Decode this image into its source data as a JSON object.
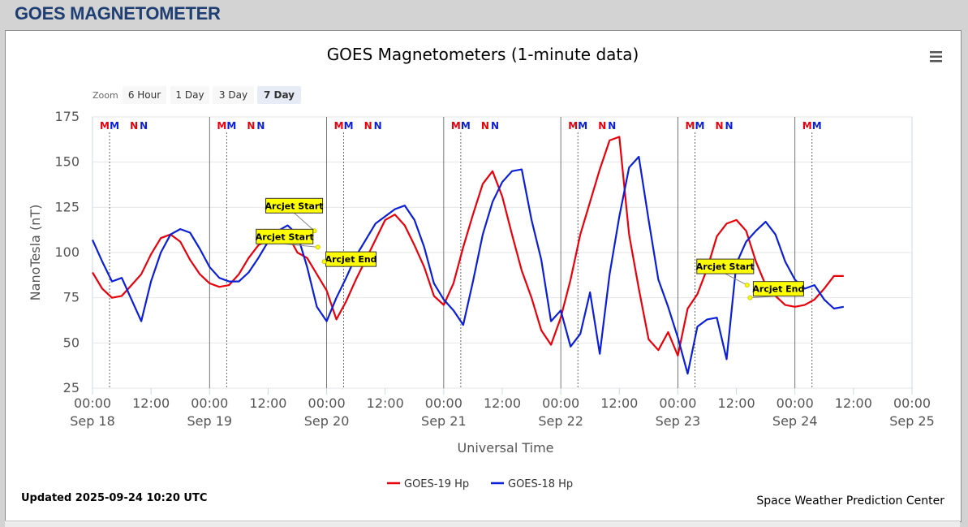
{
  "header": {
    "title": "GOES MAGNETOMETER"
  },
  "chart_data": {
    "type": "line",
    "title": "GOES Magnetometers (1-minute data)",
    "xlabel": "Universal Time",
    "ylabel": "NanoTesla (nT)",
    "ylim": [
      25,
      175
    ],
    "yticks": [
      25,
      50,
      75,
      100,
      125,
      150,
      175
    ],
    "xlim": [
      0,
      168
    ],
    "xticks": [
      {
        "hour": 0,
        "time": "00:00",
        "date": "Sep 18"
      },
      {
        "hour": 12,
        "time": "12:00",
        "date": ""
      },
      {
        "hour": 24,
        "time": "00:00",
        "date": "Sep 19"
      },
      {
        "hour": 36,
        "time": "12:00",
        "date": ""
      },
      {
        "hour": 48,
        "time": "00:00",
        "date": "Sep 20"
      },
      {
        "hour": 60,
        "time": "12:00",
        "date": ""
      },
      {
        "hour": 72,
        "time": "00:00",
        "date": "Sep 21"
      },
      {
        "hour": 84,
        "time": "12:00",
        "date": ""
      },
      {
        "hour": 96,
        "time": "00:00",
        "date": "Sep 22"
      },
      {
        "hour": 108,
        "time": "12:00",
        "date": ""
      },
      {
        "hour": 120,
        "time": "00:00",
        "date": "Sep 23"
      },
      {
        "hour": 132,
        "time": "12:00",
        "date": ""
      },
      {
        "hour": 144,
        "time": "00:00",
        "date": "Sep 24"
      },
      {
        "hour": 156,
        "time": "12:00",
        "date": ""
      },
      {
        "hour": 168,
        "time": "00:00",
        "date": "Sep 25"
      }
    ],
    "grid": true,
    "legend_position": "bottom-center",
    "series": [
      {
        "name": "GOES-19 Hp",
        "color": "#e8000b",
        "x": [
          0,
          2,
          4,
          6,
          8,
          10,
          12,
          14,
          16,
          18,
          20,
          22,
          24,
          26,
          28,
          30,
          32,
          34,
          36,
          38,
          40,
          42,
          44,
          46,
          48,
          50,
          52,
          54,
          56,
          58,
          60,
          62,
          64,
          66,
          68,
          70,
          72,
          74,
          76,
          78,
          80,
          82,
          84,
          86,
          88,
          90,
          92,
          94,
          96,
          98,
          100,
          102,
          104,
          106,
          108,
          110,
          112,
          114,
          116,
          118,
          120,
          122,
          124,
          126,
          128,
          130,
          132,
          134,
          136,
          138,
          140,
          142,
          144,
          146,
          148,
          150,
          152,
          154
        ],
        "y": [
          89,
          80,
          75,
          76,
          82,
          88,
          99,
          108,
          110,
          106,
          96,
          88,
          83,
          81,
          82,
          88,
          97,
          104,
          107,
          112,
          110,
          100,
          97,
          88,
          79,
          63,
          73,
          85,
          96,
          107,
          118,
          121,
          115,
          104,
          92,
          76,
          71,
          83,
          103,
          121,
          138,
          145,
          131,
          110,
          90,
          75,
          57,
          49,
          64,
          85,
          110,
          128,
          146,
          162,
          164,
          110,
          80,
          52,
          46,
          56,
          43,
          69,
          77,
          91,
          109,
          116,
          118,
          112,
          95,
          82,
          76,
          71,
          70,
          71,
          74,
          80,
          87,
          87
        ]
      },
      {
        "name": "GOES-18 Hp",
        "color": "#0b1fd8",
        "x": [
          0,
          2,
          4,
          6,
          8,
          10,
          12,
          14,
          16,
          18,
          20,
          22,
          24,
          26,
          28,
          30,
          32,
          34,
          36,
          38,
          40,
          42,
          44,
          46,
          48,
          50,
          52,
          54,
          56,
          58,
          60,
          62,
          64,
          66,
          68,
          70,
          72,
          74,
          76,
          78,
          80,
          82,
          84,
          86,
          88,
          90,
          92,
          94,
          96,
          98,
          100,
          102,
          104,
          106,
          108,
          110,
          112,
          114,
          116,
          118,
          120,
          122,
          124,
          126,
          128,
          130,
          132,
          134,
          136,
          138,
          140,
          142,
          144,
          146,
          148,
          150,
          152,
          154
        ],
        "y": [
          107,
          95,
          84,
          86,
          74,
          62,
          84,
          100,
          110,
          113,
          111,
          102,
          92,
          86,
          84,
          84,
          89,
          97,
          106,
          112,
          115,
          110,
          92,
          70,
          62,
          75,
          86,
          98,
          107,
          116,
          120,
          124,
          126,
          118,
          103,
          83,
          74,
          68,
          60,
          84,
          110,
          128,
          139,
          145,
          146,
          118,
          96,
          62,
          68,
          48,
          55,
          78,
          44,
          88,
          120,
          147,
          153,
          118,
          85,
          70,
          53,
          33,
          59,
          63,
          64,
          41,
          94,
          106,
          112,
          117,
          110,
          95,
          85,
          80,
          82,
          74,
          69,
          70
        ]
      }
    ],
    "annotations": [
      {
        "label": "Arcjet Start",
        "hour": 45.5,
        "value": 112
      },
      {
        "label": "Arcjet Start",
        "hour": 46.2,
        "value": 103
      },
      {
        "label": "Arcjet End",
        "hour": 47.5,
        "value": 95
      },
      {
        "label": "Arcjet Start",
        "hour": 134.2,
        "value": 82
      },
      {
        "label": "Arcjet End",
        "hour": 134.8,
        "value": 75
      }
    ],
    "satellite_markers": {
      "red": [
        {
          "letter": "M",
          "hour": 2.5
        },
        {
          "letter": "N",
          "hour": 8.5
        },
        {
          "letter": "M",
          "hour": 26.5
        },
        {
          "letter": "N",
          "hour": 32.5
        },
        {
          "letter": "M",
          "hour": 50.5
        },
        {
          "letter": "N",
          "hour": 56.5
        },
        {
          "letter": "M",
          "hour": 74.5
        },
        {
          "letter": "N",
          "hour": 80.5
        },
        {
          "letter": "M",
          "hour": 98.5
        },
        {
          "letter": "N",
          "hour": 104.5
        },
        {
          "letter": "M",
          "hour": 122.5
        },
        {
          "letter": "N",
          "hour": 128.5
        },
        {
          "letter": "M",
          "hour": 146.5
        }
      ],
      "blue": [
        {
          "letter": "M",
          "hour": 4.5
        },
        {
          "letter": "N",
          "hour": 10.5
        },
        {
          "letter": "M",
          "hour": 28.5
        },
        {
          "letter": "N",
          "hour": 34.5
        },
        {
          "letter": "M",
          "hour": 52.5
        },
        {
          "letter": "N",
          "hour": 58.5
        },
        {
          "letter": "M",
          "hour": 76.5
        },
        {
          "letter": "N",
          "hour": 82.5
        },
        {
          "letter": "M",
          "hour": 100.5
        },
        {
          "letter": "N",
          "hour": 106.5
        },
        {
          "letter": "M",
          "hour": 124.5
        },
        {
          "letter": "N",
          "hour": 130.5
        },
        {
          "letter": "M",
          "hour": 148.5
        }
      ],
      "red_color": "#e8000b",
      "blue_color": "#0b1fd8"
    }
  },
  "zoom": {
    "label": "Zoom",
    "buttons": [
      "6 Hour",
      "1 Day",
      "3 Day",
      "7 Day"
    ],
    "selected": "7 Day"
  },
  "menu": {
    "icon": "hamburger-menu-icon"
  },
  "footer": {
    "updated": "Updated 2025-09-24 10:20 UTC",
    "credit": "Space Weather Prediction Center"
  }
}
